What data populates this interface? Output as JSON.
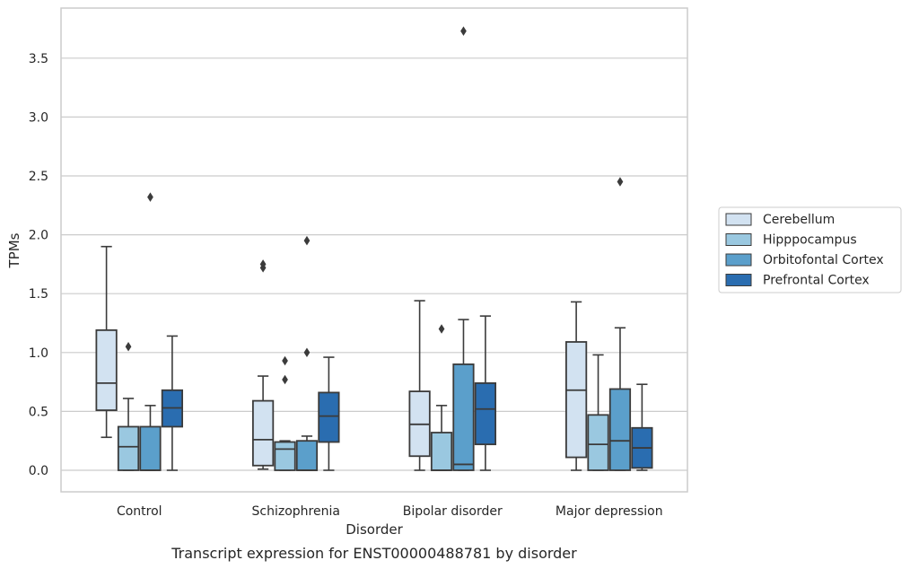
{
  "chart_data": {
    "type": "box",
    "title": "",
    "caption": "Transcript expression for ENST00000488781 by disorder",
    "xlabel": "Disorder",
    "ylabel": "TPMs",
    "ylim": [
      -0.18,
      3.95
    ],
    "yticks": [
      "0.0",
      "0.5",
      "1.0",
      "1.5",
      "2.0",
      "2.5",
      "3.0",
      "3.5"
    ],
    "grid": "horizontal",
    "legend_position": "outside-right",
    "categories": [
      "Control",
      "Schizophrenia",
      "Bipolar disorder",
      "Major depression"
    ],
    "series": [
      {
        "name": "Cerebellum",
        "color": "#d2e2f1",
        "boxes": [
          {
            "whisker_low": 0.28,
            "q1": 0.51,
            "median": 0.74,
            "q3": 1.19,
            "whisker_high": 1.9,
            "outliers": []
          },
          {
            "whisker_low": 0.01,
            "q1": 0.04,
            "median": 0.26,
            "q3": 0.59,
            "whisker_high": 0.8,
            "outliers": [
              1.72,
              1.75
            ]
          },
          {
            "whisker_low": 0.0,
            "q1": 0.12,
            "median": 0.39,
            "q3": 0.67,
            "whisker_high": 1.44,
            "outliers": []
          },
          {
            "whisker_low": 0.0,
            "q1": 0.11,
            "median": 0.68,
            "q3": 1.09,
            "whisker_high": 1.43,
            "outliers": []
          }
        ]
      },
      {
        "name": "Hipppocampus",
        "color": "#9ac8e0",
        "boxes": [
          {
            "whisker_low": 0.0,
            "q1": 0.0,
            "median": 0.2,
            "q3": 0.37,
            "whisker_high": 0.61,
            "outliers": [
              1.05
            ]
          },
          {
            "whisker_low": 0.0,
            "q1": 0.0,
            "median": 0.18,
            "q3": 0.24,
            "whisker_high": 0.25,
            "outliers": [
              0.77,
              0.93
            ]
          },
          {
            "whisker_low": 0.0,
            "q1": 0.0,
            "median": 0.0,
            "q3": 0.32,
            "whisker_high": 0.55,
            "outliers": [
              1.2
            ]
          },
          {
            "whisker_low": 0.0,
            "q1": 0.0,
            "median": 0.22,
            "q3": 0.47,
            "whisker_high": 0.98,
            "outliers": []
          }
        ]
      },
      {
        "name": "Orbitofontal Cortex",
        "color": "#5b9fcb",
        "boxes": [
          {
            "whisker_low": 0.0,
            "q1": 0.0,
            "median": 0.0,
            "q3": 0.37,
            "whisker_high": 0.55,
            "outliers": [
              2.32
            ]
          },
          {
            "whisker_low": 0.0,
            "q1": 0.0,
            "median": 0.0,
            "q3": 0.25,
            "whisker_high": 0.29,
            "outliers": [
              1.0,
              1.95
            ]
          },
          {
            "whisker_low": 0.0,
            "q1": 0.0,
            "median": 0.05,
            "q3": 0.9,
            "whisker_high": 1.28,
            "outliers": [
              3.73
            ]
          },
          {
            "whisker_low": 0.0,
            "q1": 0.0,
            "median": 0.25,
            "q3": 0.69,
            "whisker_high": 1.21,
            "outliers": [
              2.45
            ]
          }
        ]
      },
      {
        "name": "Prefrontal Cortex",
        "color": "#2a6db0",
        "boxes": [
          {
            "whisker_low": 0.0,
            "q1": 0.37,
            "median": 0.53,
            "q3": 0.68,
            "whisker_high": 1.14,
            "outliers": []
          },
          {
            "whisker_low": 0.0,
            "q1": 0.24,
            "median": 0.46,
            "q3": 0.66,
            "whisker_high": 0.96,
            "outliers": []
          },
          {
            "whisker_low": 0.0,
            "q1": 0.22,
            "median": 0.52,
            "q3": 0.74,
            "whisker_high": 1.31,
            "outliers": []
          },
          {
            "whisker_low": 0.0,
            "q1": 0.02,
            "median": 0.19,
            "q3": 0.36,
            "whisker_high": 0.73,
            "outliers": []
          }
        ]
      }
    ]
  }
}
